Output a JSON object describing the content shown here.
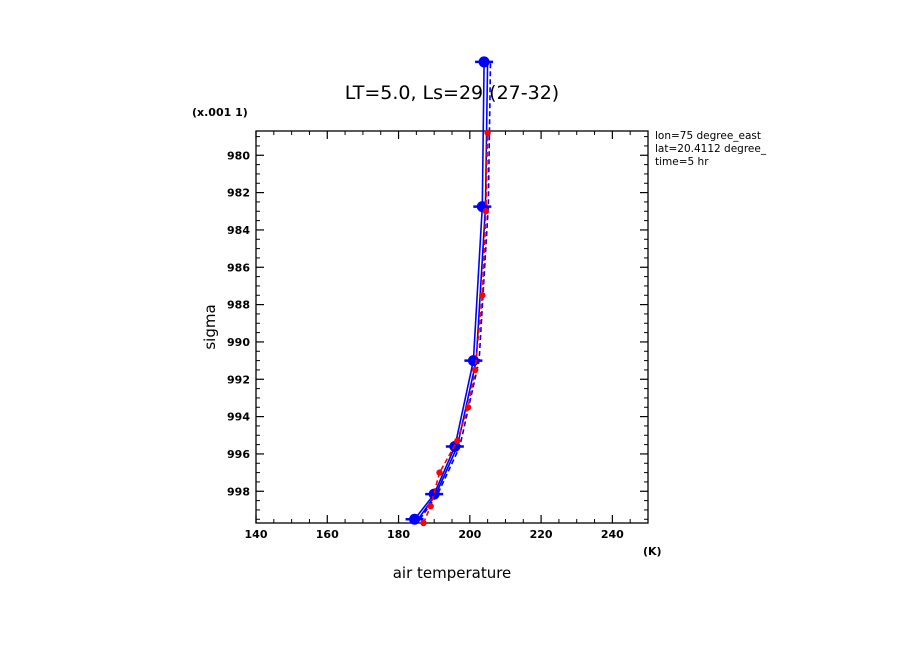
{
  "chart_data": {
    "type": "line",
    "title": "LT=5.0, Ls=29 (27-32)",
    "xlabel": "air temperature",
    "ylabel": "sigma",
    "x_unit": "(K)",
    "y_unit": "(x.001 1)",
    "xlim": [
      140,
      250
    ],
    "ylim": [
      999.7,
      978.7
    ],
    "x_ticks": [
      "140",
      "160",
      "180",
      "200",
      "220",
      "240"
    ],
    "y_ticks": [
      "980",
      "982",
      "984",
      "986",
      "988",
      "990",
      "992",
      "994",
      "996",
      "998"
    ],
    "y_inverted": true,
    "annotations": [
      "lon=75 degree_east",
      "lat=20.4112 degree_",
      "time=5 hr"
    ],
    "series": [
      {
        "color": "#0000ff",
        "style": "solid",
        "markers": true,
        "x": [
          184.5,
          190.0,
          195.8,
          201.0,
          203.5,
          204.0
        ],
        "y": [
          999.5,
          998.15,
          995.6,
          991.0,
          982.75,
          975.0
        ]
      },
      {
        "color": "#0000ff",
        "style": "solid",
        "x": [
          185.5,
          190.5,
          196.5,
          201.8,
          204.4,
          205.0
        ],
        "y": [
          999.5,
          998.15,
          995.6,
          991.0,
          982.75,
          975.0
        ]
      },
      {
        "color": "#0000ff",
        "style": "dashed",
        "x": [
          186.0,
          191.0,
          197.2,
          202.6,
          205.2,
          205.8
        ],
        "y": [
          999.5,
          998.15,
          995.6,
          991.0,
          982.75,
          975.0
        ]
      },
      {
        "color": "#ff0000",
        "style": "dashed",
        "markers": true,
        "x": [
          187.0,
          189.0,
          191.5,
          196.5,
          199.5,
          201.5,
          203.5,
          204.5,
          205.0
        ],
        "y": [
          999.7,
          998.8,
          997.0,
          995.3,
          993.5,
          991.5,
          987.5,
          983.0,
          978.8
        ]
      }
    ]
  }
}
